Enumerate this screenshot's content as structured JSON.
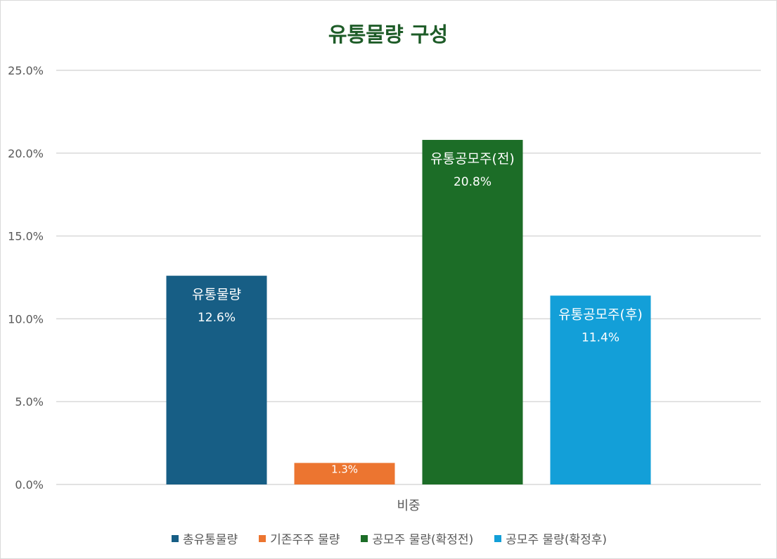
{
  "chart_data": {
    "type": "bar",
    "title": "유통물량 구성",
    "title_color": "#1e5c28",
    "xlabel": "",
    "ylabel": "",
    "categories": [
      "비중"
    ],
    "ylim": [
      0,
      25
    ],
    "yticks": [
      0,
      5,
      10,
      15,
      20,
      25
    ],
    "ytick_labels": [
      "0.0%",
      "5.0%",
      "10.0%",
      "15.0%",
      "20.0%",
      "25.0%"
    ],
    "grid": true,
    "legend_position": "bottom",
    "series": [
      {
        "name": "총유통물량",
        "values": [
          12.6
        ],
        "color": "#175e85",
        "label_name": "유통물량",
        "label_value": "12.6%"
      },
      {
        "name": "기존주주 물량",
        "values": [
          1.3
        ],
        "color": "#ec7530",
        "label_name": "",
        "label_value": "1.3%"
      },
      {
        "name": "공모주 물량(확정전)",
        "values": [
          20.8
        ],
        "color": "#1c6d27",
        "label_name": "유통공모주(전)",
        "label_value": "20.8%"
      },
      {
        "name": "공모주 물량(확정후)",
        "values": [
          11.4
        ],
        "color": "#139fd8",
        "label_name": "유통공모주(후)",
        "label_value": "11.4%"
      }
    ]
  }
}
